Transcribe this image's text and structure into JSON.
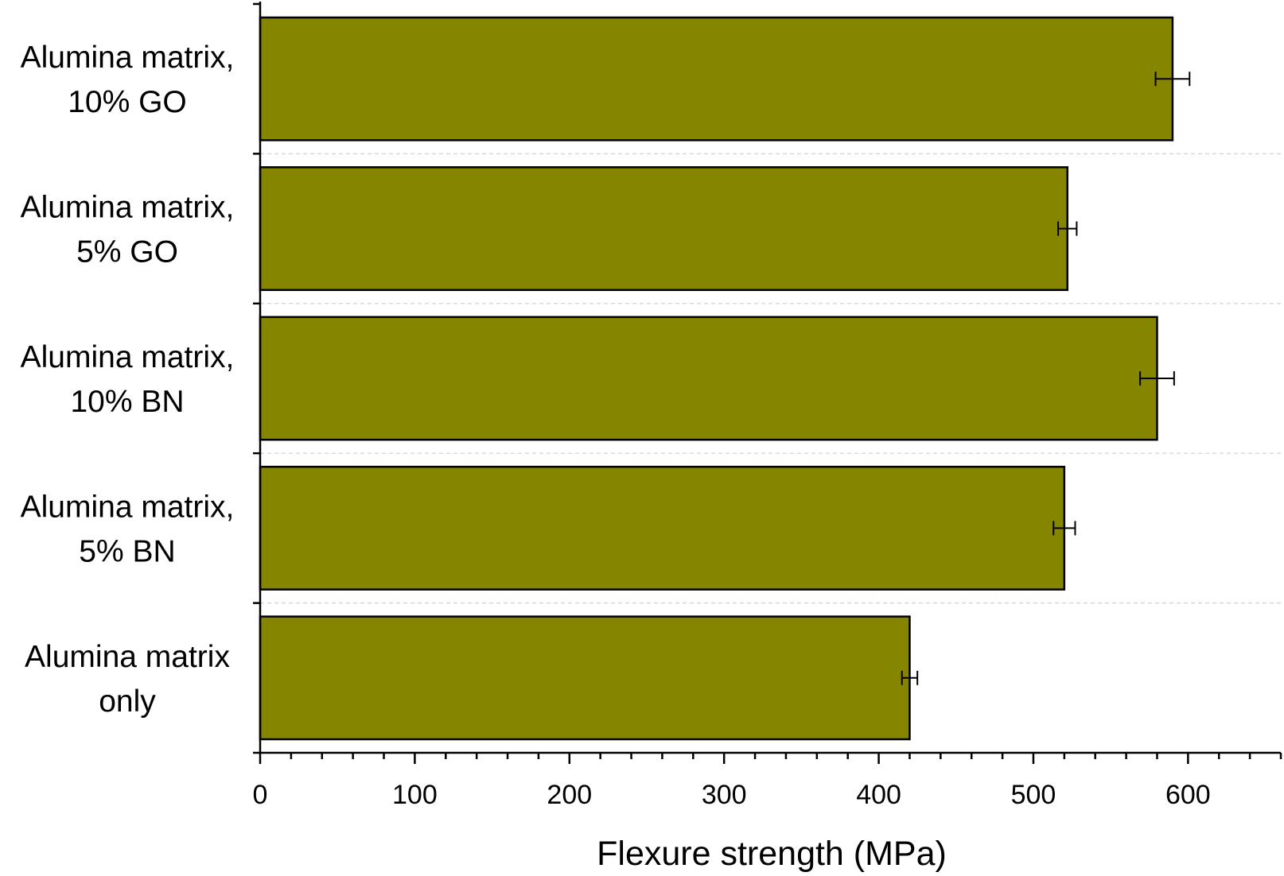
{
  "chart_data": {
    "type": "bar",
    "orientation": "horizontal",
    "categories": [
      [
        "Alumina matrix,",
        "10% GO"
      ],
      [
        "Alumina matrix,",
        "5% GO"
      ],
      [
        "Alumina matrix,",
        "10% BN"
      ],
      [
        "Alumina matrix,",
        "5% BN"
      ],
      [
        "Alumina matrix",
        "only"
      ]
    ],
    "values": [
      590,
      522,
      580,
      520,
      420
    ],
    "errors": [
      11,
      6,
      11,
      7,
      5
    ],
    "xlabel": "Flexure strength (MPa)",
    "ylabel": "",
    "xlim": [
      0,
      660
    ],
    "xticks": [
      0,
      100,
      200,
      300,
      400,
      500,
      600
    ],
    "minor_tick_step": 20,
    "grid": "horizontal dashed separators between categories",
    "bar_color": "#858500",
    "edge_color": "#000000",
    "separator_color": "#d9d9d9"
  }
}
